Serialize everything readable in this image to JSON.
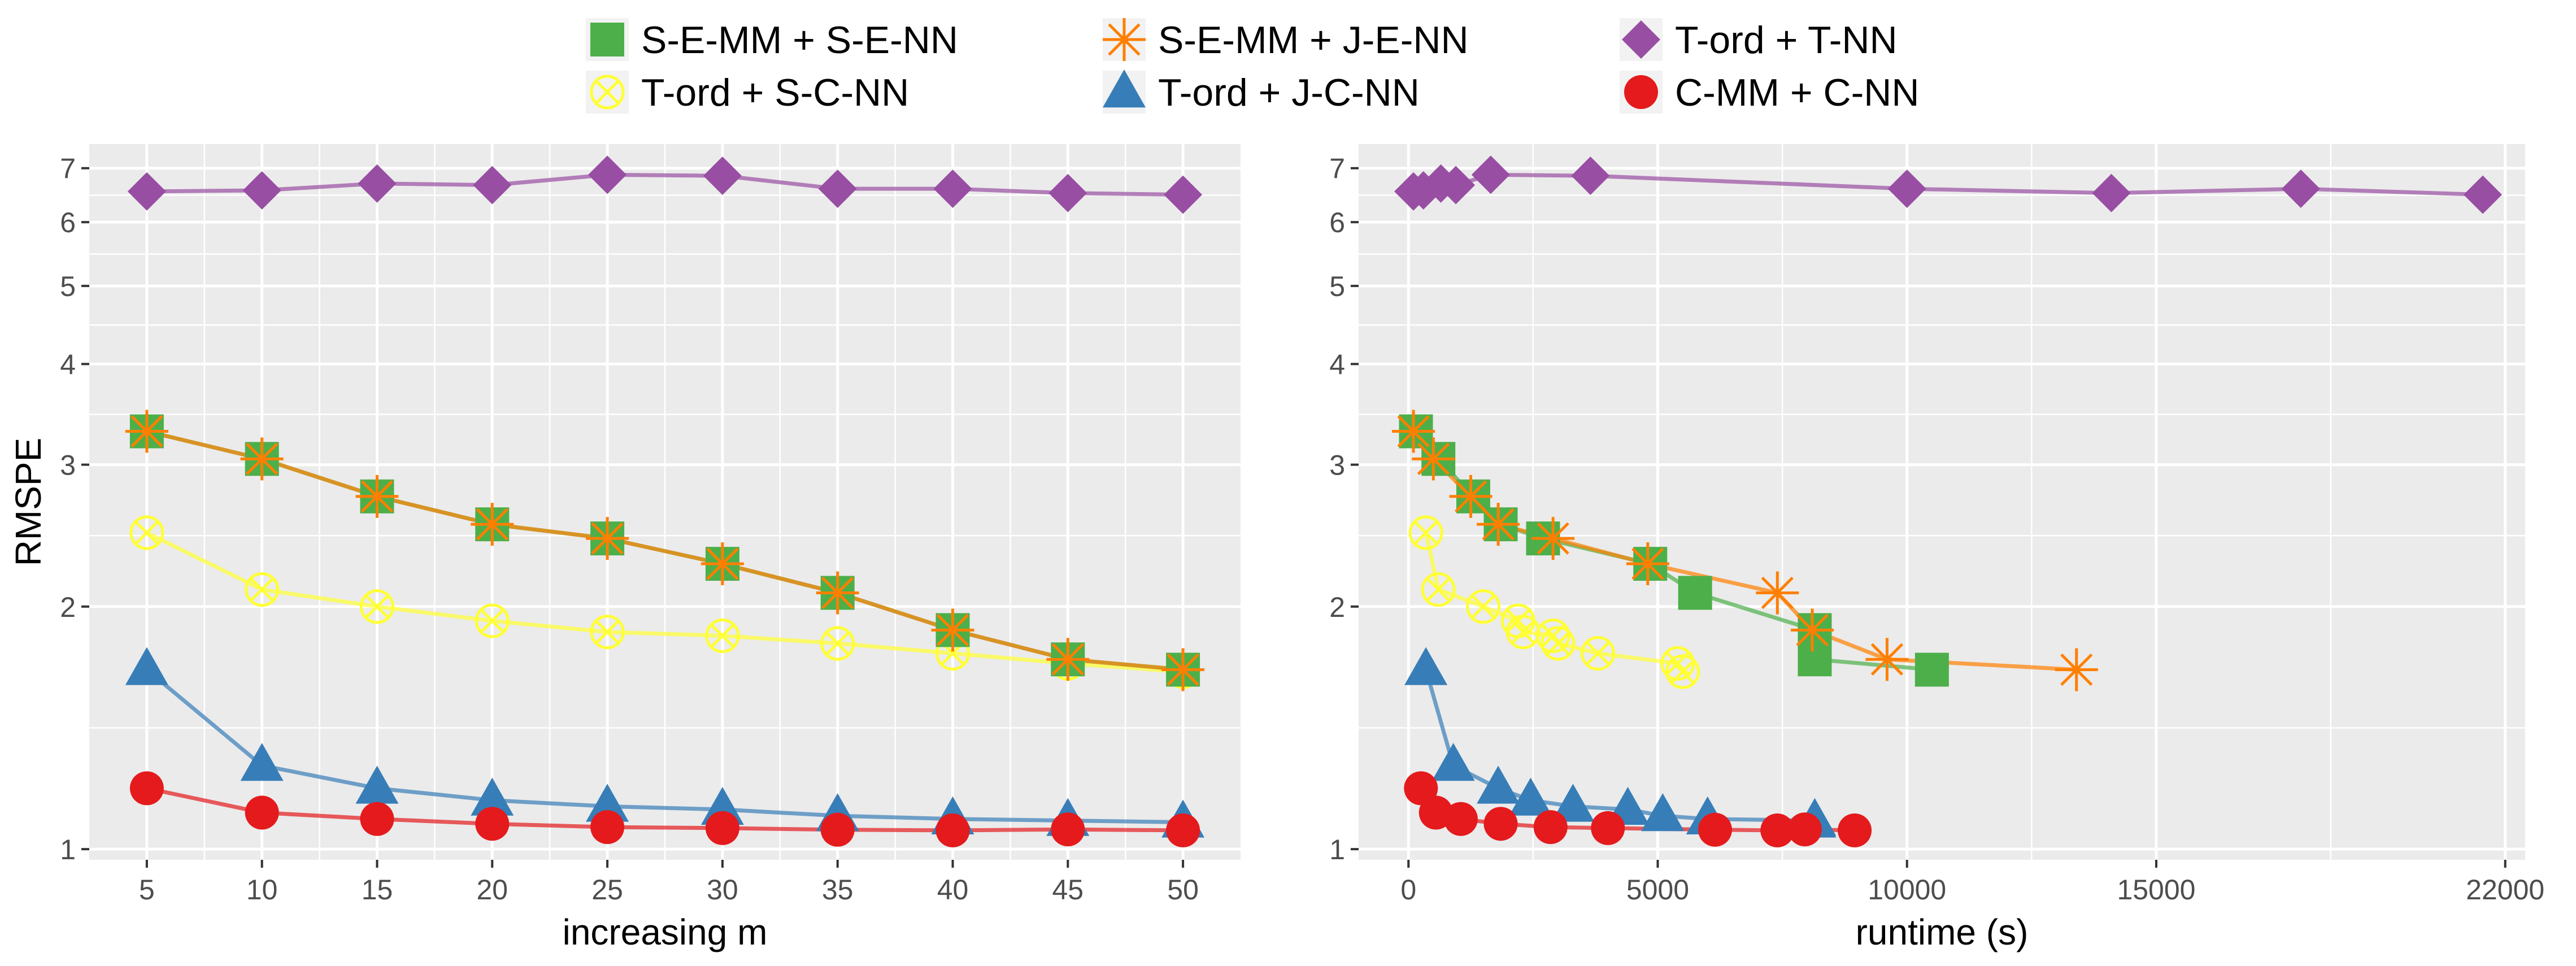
{
  "legend": {
    "items": [
      {
        "label": "S-E-MM + S-E-NN",
        "color": "#4DAF4A",
        "shape": "square"
      },
      {
        "label": "S-E-MM + J-E-NN",
        "color": "#FF7F00",
        "shape": "asterisk"
      },
      {
        "label": "T-ord + T-NN",
        "color": "#984EA3",
        "shape": "diamond"
      },
      {
        "label": "T-ord + S-C-NN",
        "color": "#FFFF33",
        "shape": "circle-cross"
      },
      {
        "label": "T-ord + J-C-NN",
        "color": "#377EB8",
        "shape": "triangle"
      },
      {
        "label": "C-MM + C-NN",
        "color": "#E41A1C",
        "shape": "circle"
      }
    ]
  },
  "chart_data": [
    {
      "type": "line",
      "xlabel": "increasing m",
      "ylabel": "RMSPE",
      "y_scale": "log",
      "ylim": [
        0.97,
        7.5
      ],
      "xlim": [
        2.5,
        52.5
      ],
      "xticks": [
        5,
        10,
        15,
        20,
        25,
        30,
        35,
        40,
        45,
        50
      ],
      "yticks": [
        1,
        2,
        3,
        4,
        5,
        6,
        7
      ],
      "grid": true,
      "series": [
        {
          "name": "S-E-MM + S-E-NN",
          "x": [
            5,
            10,
            15,
            20,
            25,
            30,
            35,
            40,
            45,
            50
          ],
          "y": [
            3.3,
            3.05,
            2.74,
            2.53,
            2.43,
            2.26,
            2.08,
            1.87,
            1.72,
            1.67
          ]
        },
        {
          "name": "S-E-MM + J-E-NN",
          "x": [
            5,
            10,
            15,
            20,
            25,
            30,
            35,
            40,
            45,
            50
          ],
          "y": [
            3.3,
            3.05,
            2.74,
            2.53,
            2.43,
            2.26,
            2.08,
            1.87,
            1.72,
            1.67
          ]
        },
        {
          "name": "T-ord + T-NN",
          "x": [
            5,
            10,
            15,
            20,
            25,
            30,
            35,
            40,
            45,
            50
          ],
          "y": [
            6.55,
            6.57,
            6.7,
            6.67,
            6.87,
            6.85,
            6.6,
            6.6,
            6.52,
            6.49
          ]
        },
        {
          "name": "T-ord + S-C-NN",
          "x": [
            5,
            10,
            15,
            20,
            25,
            30,
            35,
            40,
            45,
            50
          ],
          "y": [
            2.47,
            2.1,
            2.0,
            1.92,
            1.86,
            1.84,
            1.8,
            1.75,
            1.7,
            1.66
          ]
        },
        {
          "name": "T-ord + J-C-NN",
          "x": [
            5,
            10,
            15,
            20,
            25,
            30,
            35,
            40,
            45,
            50
          ],
          "y": [
            1.67,
            1.27,
            1.19,
            1.15,
            1.13,
            1.12,
            1.1,
            1.09,
            1.085,
            1.08
          ]
        },
        {
          "name": "C-MM + C-NN",
          "x": [
            5,
            10,
            15,
            20,
            25,
            30,
            35,
            40,
            45,
            50
          ],
          "y": [
            1.19,
            1.11,
            1.09,
            1.075,
            1.065,
            1.062,
            1.057,
            1.055,
            1.058,
            1.055
          ]
        }
      ]
    },
    {
      "type": "line",
      "xlabel": "runtime (s)",
      "ylabel": "",
      "y_scale": "log",
      "ylim": [
        0.97,
        7.5
      ],
      "xlim": [
        -1000,
        22400
      ],
      "xticks": [
        0,
        5000,
        10000,
        15000,
        22000
      ],
      "yticks": [
        1,
        2,
        3,
        4,
        5,
        6,
        7
      ],
      "grid": true,
      "series": [
        {
          "name": "S-E-MM + S-E-NN",
          "x": [
            150,
            600,
            1300,
            1850,
            2700,
            4850,
            5750,
            8150,
            8150,
            10500
          ],
          "y": [
            3.3,
            3.05,
            2.74,
            2.53,
            2.43,
            2.26,
            2.08,
            1.87,
            1.72,
            1.67
          ]
        },
        {
          "name": "S-E-MM + J-E-NN",
          "x": [
            100,
            500,
            1250,
            1800,
            2900,
            4800,
            7400,
            8100,
            9600,
            13400
          ],
          "y": [
            3.3,
            3.05,
            2.74,
            2.53,
            2.43,
            2.26,
            2.08,
            1.87,
            1.72,
            1.67
          ]
        },
        {
          "name": "T-ord + T-NN",
          "x": [
            100,
            300,
            650,
            950,
            1650,
            3650,
            10000,
            14100,
            17900,
            21550
          ],
          "y": [
            6.55,
            6.57,
            6.7,
            6.67,
            6.87,
            6.85,
            6.6,
            6.52,
            6.6,
            6.49
          ]
        },
        {
          "name": "T-ord + S-C-NN",
          "x": [
            350,
            600,
            1500,
            2200,
            2300,
            2900,
            3000,
            3800,
            5400,
            5500
          ],
          "y": [
            2.47,
            2.1,
            2.0,
            1.92,
            1.86,
            1.84,
            1.8,
            1.75,
            1.7,
            1.66
          ]
        },
        {
          "name": "T-ord + J-C-NN",
          "x": [
            350,
            900,
            1800,
            2450,
            3300,
            4400,
            5100,
            6000,
            8150,
            8150
          ],
          "y": [
            1.67,
            1.27,
            1.19,
            1.15,
            1.13,
            1.12,
            1.1,
            1.09,
            1.085,
            1.08
          ]
        },
        {
          "name": "C-MM + C-NN",
          "x": [
            250,
            550,
            1050,
            1850,
            2850,
            4000,
            6150,
            7400,
            7950,
            8950
          ],
          "y": [
            1.19,
            1.11,
            1.09,
            1.075,
            1.065,
            1.062,
            1.057,
            1.055,
            1.058,
            1.055
          ]
        }
      ]
    }
  ]
}
